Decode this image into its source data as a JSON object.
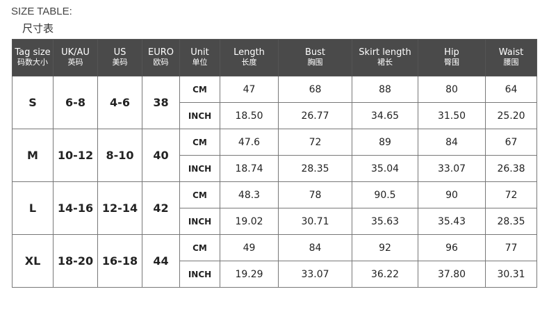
{
  "title": "SIZE TABLE:",
  "subtitle": "尺寸表",
  "headers": [
    {
      "en": "Tag size",
      "cn": "码数大小"
    },
    {
      "en": "UK/AU",
      "cn": "英码"
    },
    {
      "en": "US",
      "cn": "美码"
    },
    {
      "en": "EURO",
      "cn": "欧码"
    },
    {
      "en": "Unit",
      "cn": "单位"
    },
    {
      "en": "Length",
      "cn": "长度"
    },
    {
      "en": "Bust",
      "cn": "胸围"
    },
    {
      "en": "Skirt length",
      "cn": "裙长"
    },
    {
      "en": "Hip",
      "cn": "臀围"
    },
    {
      "en": "Waist",
      "cn": "腰围"
    }
  ],
  "rows": [
    {
      "tag": "S",
      "uk": "6-8",
      "us": "4-6",
      "euro": "38",
      "cm": {
        "unit": "CM",
        "values": [
          "47",
          "68",
          "88",
          "80",
          "64"
        ]
      },
      "inch": {
        "unit": "INCH",
        "values": [
          "18.50",
          "26.77",
          "34.65",
          "31.50",
          "25.20"
        ]
      }
    },
    {
      "tag": "M",
      "uk": "10-12",
      "us": "8-10",
      "euro": "40",
      "cm": {
        "unit": "CM",
        "values": [
          "47.6",
          "72",
          "89",
          "84",
          "67"
        ]
      },
      "inch": {
        "unit": "INCH",
        "values": [
          "18.74",
          "28.35",
          "35.04",
          "33.07",
          "26.38"
        ]
      }
    },
    {
      "tag": "L",
      "uk": "14-16",
      "us": "12-14",
      "euro": "42",
      "cm": {
        "unit": "CM",
        "values": [
          "48.3",
          "78",
          "90.5",
          "90",
          "72"
        ]
      },
      "inch": {
        "unit": "INCH",
        "values": [
          "19.02",
          "30.71",
          "35.63",
          "35.43",
          "28.35"
        ]
      }
    },
    {
      "tag": "XL",
      "uk": "18-20",
      "us": "16-18",
      "euro": "44",
      "cm": {
        "unit": "CM",
        "values": [
          "49",
          "84",
          "92",
          "96",
          "77"
        ]
      },
      "inch": {
        "unit": "INCH",
        "values": [
          "19.29",
          "33.07",
          "36.22",
          "37.80",
          "30.31"
        ]
      }
    }
  ]
}
